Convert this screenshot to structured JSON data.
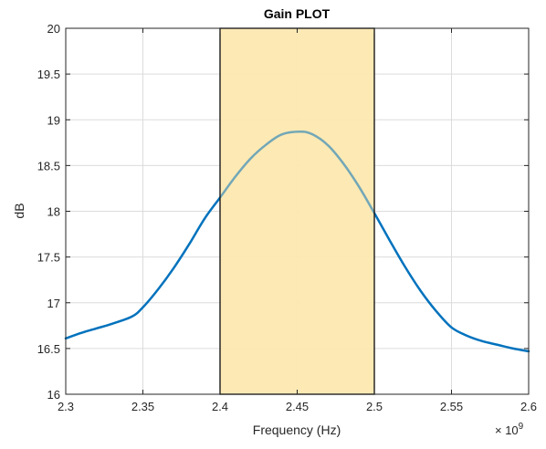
{
  "chart_data": {
    "type": "line",
    "title": "Gain PLOT",
    "xlabel": "Frequency (Hz)",
    "ylabel": "dB",
    "x_exponent_base": "× 10",
    "x_exponent_power": "9",
    "xlim": [
      2.3,
      2.6
    ],
    "ylim": [
      16,
      20
    ],
    "x_ticks": [
      2.3,
      2.35,
      2.4,
      2.45,
      2.5,
      2.55,
      2.6
    ],
    "x_tick_labels": [
      "2.3",
      "2.35",
      "2.4",
      "2.45",
      "2.5",
      "2.55",
      "2.6"
    ],
    "y_ticks": [
      16,
      16.5,
      17,
      17.5,
      18,
      18.5,
      19,
      19.5,
      20
    ],
    "y_tick_labels": [
      "16",
      "16.5",
      "17",
      "17.5",
      "18",
      "18.5",
      "19",
      "19.5",
      "20"
    ],
    "grid": true,
    "highlight_band": {
      "x_start": 2.4,
      "x_end": 2.5,
      "color": "#fde8b0"
    },
    "series": [
      {
        "color": "#0072bd",
        "x": [
          2.3,
          2.31,
          2.32,
          2.33,
          2.343,
          2.35,
          2.36,
          2.37,
          2.38,
          2.39,
          2.4,
          2.41,
          2.42,
          2.43,
          2.44,
          2.452,
          2.46,
          2.47,
          2.48,
          2.49,
          2.5,
          2.51,
          2.52,
          2.53,
          2.54,
          2.55,
          2.56,
          2.57,
          2.58,
          2.59,
          2.6
        ],
        "y": [
          16.61,
          16.67,
          16.72,
          16.77,
          16.85,
          16.95,
          17.15,
          17.38,
          17.64,
          17.92,
          18.15,
          18.38,
          18.58,
          18.73,
          18.84,
          18.87,
          18.84,
          18.72,
          18.52,
          18.27,
          17.98,
          17.68,
          17.39,
          17.13,
          16.91,
          16.73,
          16.64,
          16.58,
          16.54,
          16.5,
          16.47
        ]
      }
    ]
  }
}
